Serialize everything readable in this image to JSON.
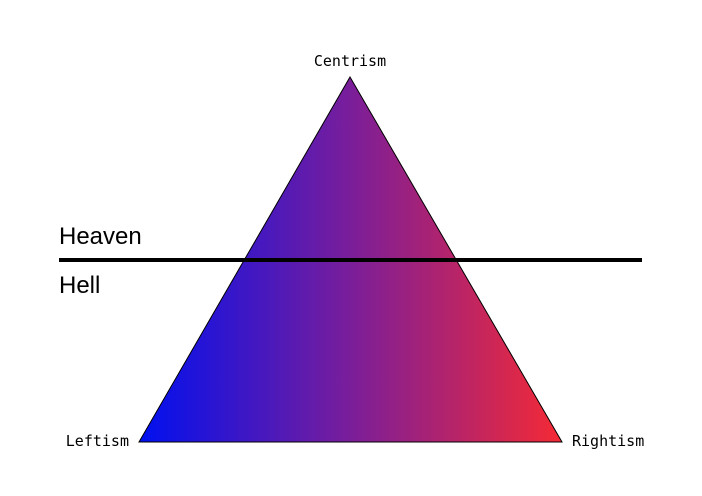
{
  "diagram": {
    "apex_label": "Centrism",
    "left_label": "Leftism",
    "right_label": "Rightism",
    "upper_zone_label": "Heaven",
    "lower_zone_label": "Hell"
  },
  "colors": {
    "left_color": "#0010f0",
    "middle_color": "#7a1e9a",
    "right_color": "#f52a35",
    "divider_color": "#000000",
    "outline_color": "#000000"
  }
}
